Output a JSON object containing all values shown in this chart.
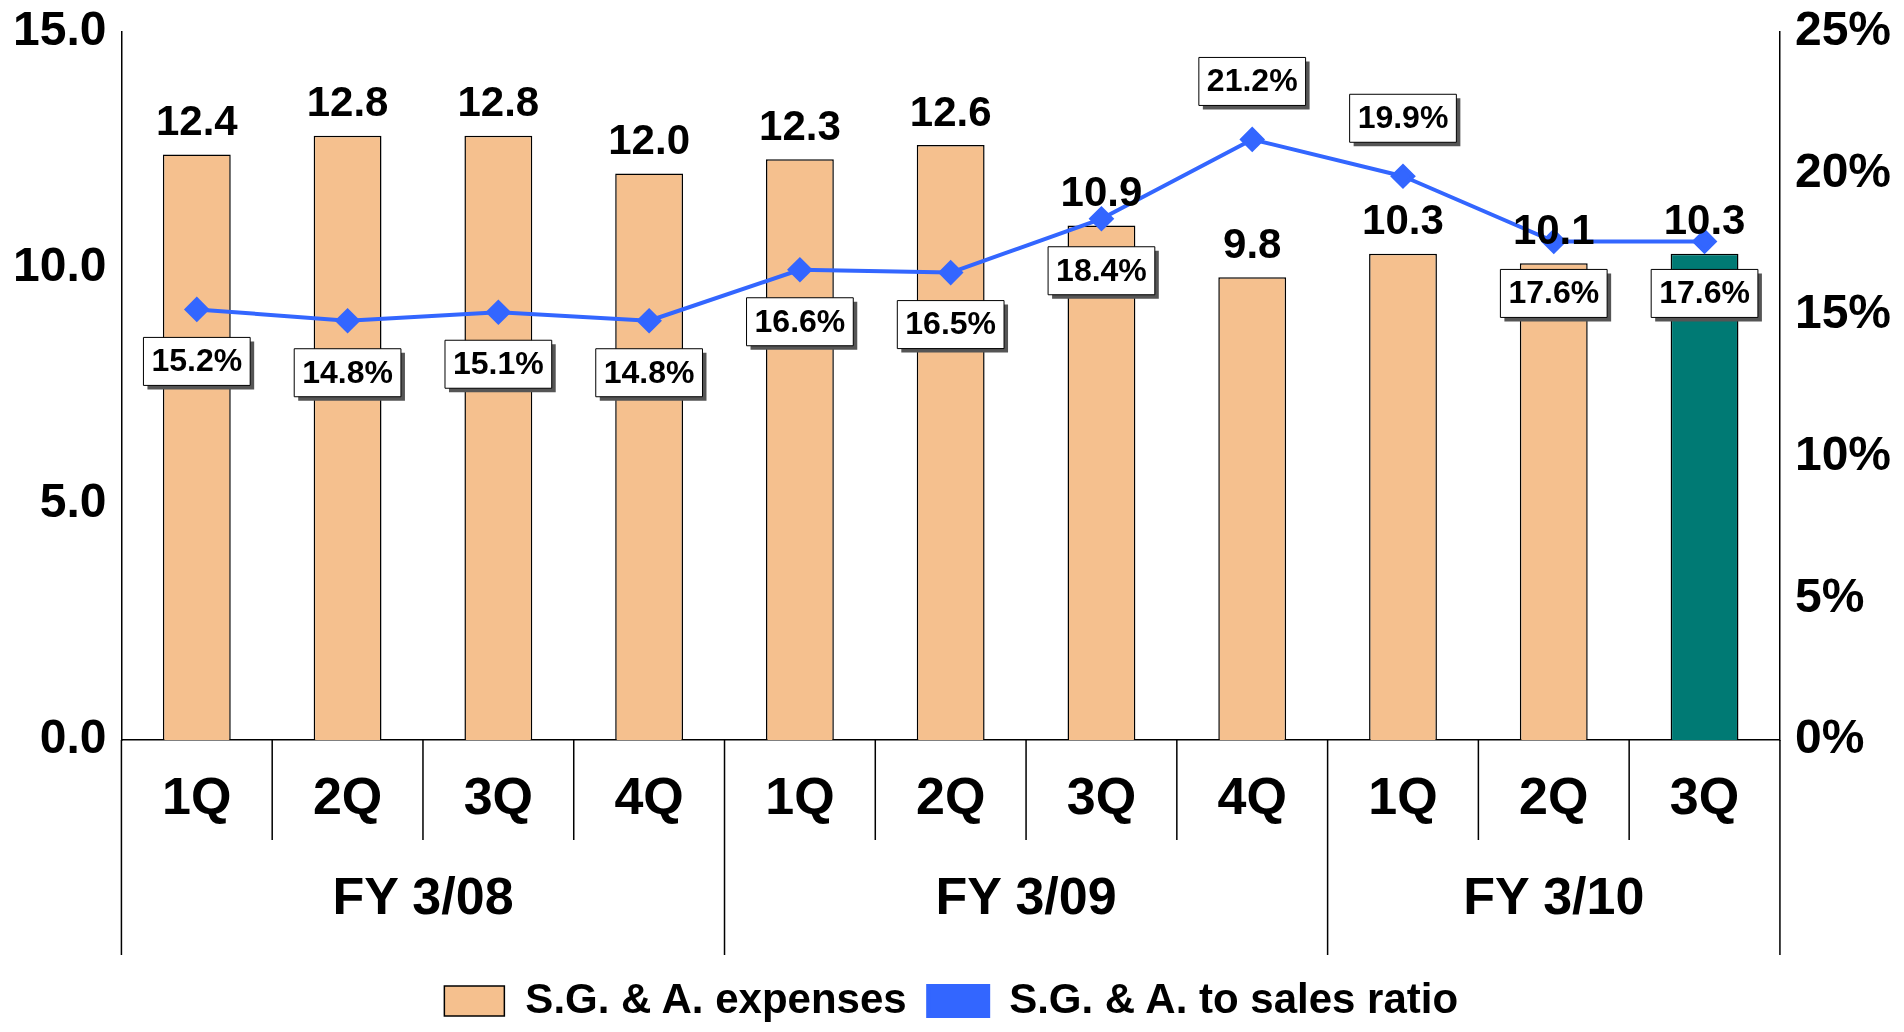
{
  "chart_data": {
    "type": "bar",
    "categories": [
      "1Q",
      "2Q",
      "3Q",
      "4Q",
      "1Q",
      "2Q",
      "3Q",
      "4Q",
      "1Q",
      "2Q",
      "3Q"
    ],
    "series": [
      {
        "name": "S.G. & A. expenses",
        "colors": [
          "#f5c08e",
          "#f5c08e",
          "#f5c08e",
          "#f5c08e",
          "#f5c08e",
          "#f5c08e",
          "#f5c08e",
          "#f5c08e",
          "#f5c08e",
          "#f5c08e",
          "#007a74"
        ],
        "values": [
          12.4,
          12.8,
          12.8,
          12.0,
          12.3,
          12.6,
          10.9,
          9.8,
          10.3,
          10.1,
          10.3
        ],
        "value_labels": [
          "12.4",
          "12.8",
          "12.8",
          "12.0",
          "12.3",
          "12.6",
          "10.9",
          "9.8",
          "10.3",
          "10.1",
          "10.3"
        ]
      },
      {
        "name": "S.G. & A. to sales ratio",
        "type": "line",
        "axis": "y2",
        "color": "#3366ff",
        "values": [
          15.2,
          14.8,
          15.1,
          14.8,
          16.6,
          16.5,
          18.4,
          21.2,
          19.9,
          17.6,
          17.6
        ],
        "value_labels": [
          "15.2%",
          "14.8%",
          "15.1%",
          "14.8%",
          "16.6%",
          "16.5%",
          "18.4%",
          "21.2%",
          "19.9%",
          "17.6%",
          "17.6%"
        ]
      }
    ],
    "annotations": [
      "FY 3/08",
      "FY 3/09",
      "FY 3/10"
    ],
    "ylim": [
      0,
      15
    ],
    "yticks": [
      {
        "value": 0,
        "label": "0.0"
      },
      {
        "value": 5,
        "label": "5.0"
      },
      {
        "value": 10,
        "label": "10.0"
      },
      {
        "value": 15,
        "label": "15.0"
      }
    ],
    "y2lim": [
      0,
      25
    ],
    "y2ticks": [
      {
        "value": 0,
        "label": "0%"
      },
      {
        "value": 5,
        "label": "5%"
      },
      {
        "value": 10,
        "label": "10%"
      },
      {
        "value": 15,
        "label": "15%"
      },
      {
        "value": 20,
        "label": "20%"
      },
      {
        "value": 25,
        "label": "25%"
      }
    ],
    "marker": "diamond",
    "grid": false,
    "legend": "bottom"
  }
}
